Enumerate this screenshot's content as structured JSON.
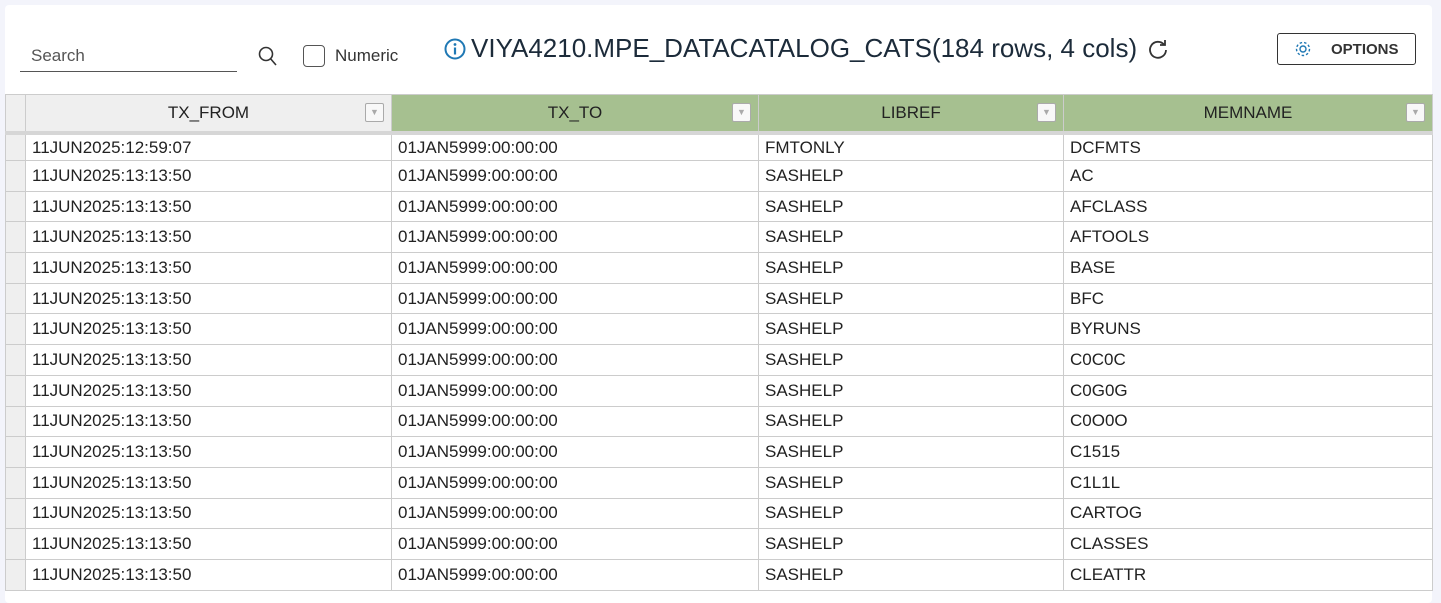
{
  "toolbar": {
    "search_placeholder": "Search",
    "search_value": "",
    "numeric_label": "Numeric",
    "numeric_checked": false,
    "title": "VIYA4210.MPE_DATACATALOG_CATS(184 rows, 4 cols)",
    "options_label": "OPTIONS",
    "accent": "#1f78b4"
  },
  "table": {
    "columns": [
      "TX_FROM",
      "TX_TO",
      "LIBREF",
      "MEMNAME"
    ],
    "header_color": "#a6c090",
    "rows": [
      [
        "11JUN2025:12:59:07",
        "01JAN5999:00:00:00",
        "FMTONLY",
        "DCFMTS"
      ],
      [
        "11JUN2025:13:13:50",
        "01JAN5999:00:00:00",
        "SASHELP",
        "AC"
      ],
      [
        "11JUN2025:13:13:50",
        "01JAN5999:00:00:00",
        "SASHELP",
        "AFCLASS"
      ],
      [
        "11JUN2025:13:13:50",
        "01JAN5999:00:00:00",
        "SASHELP",
        "AFTOOLS"
      ],
      [
        "11JUN2025:13:13:50",
        "01JAN5999:00:00:00",
        "SASHELP",
        "BASE"
      ],
      [
        "11JUN2025:13:13:50",
        "01JAN5999:00:00:00",
        "SASHELP",
        "BFC"
      ],
      [
        "11JUN2025:13:13:50",
        "01JAN5999:00:00:00",
        "SASHELP",
        "BYRUNS"
      ],
      [
        "11JUN2025:13:13:50",
        "01JAN5999:00:00:00",
        "SASHELP",
        "C0C0C"
      ],
      [
        "11JUN2025:13:13:50",
        "01JAN5999:00:00:00",
        "SASHELP",
        "C0G0G"
      ],
      [
        "11JUN2025:13:13:50",
        "01JAN5999:00:00:00",
        "SASHELP",
        "C0O0O"
      ],
      [
        "11JUN2025:13:13:50",
        "01JAN5999:00:00:00",
        "SASHELP",
        "C1515"
      ],
      [
        "11JUN2025:13:13:50",
        "01JAN5999:00:00:00",
        "SASHELP",
        "C1L1L"
      ],
      [
        "11JUN2025:13:13:50",
        "01JAN5999:00:00:00",
        "SASHELP",
        "CARTOG"
      ],
      [
        "11JUN2025:13:13:50",
        "01JAN5999:00:00:00",
        "SASHELP",
        "CLASSES"
      ],
      [
        "11JUN2025:13:13:50",
        "01JAN5999:00:00:00",
        "SASHELP",
        "CLEATTR"
      ]
    ]
  }
}
